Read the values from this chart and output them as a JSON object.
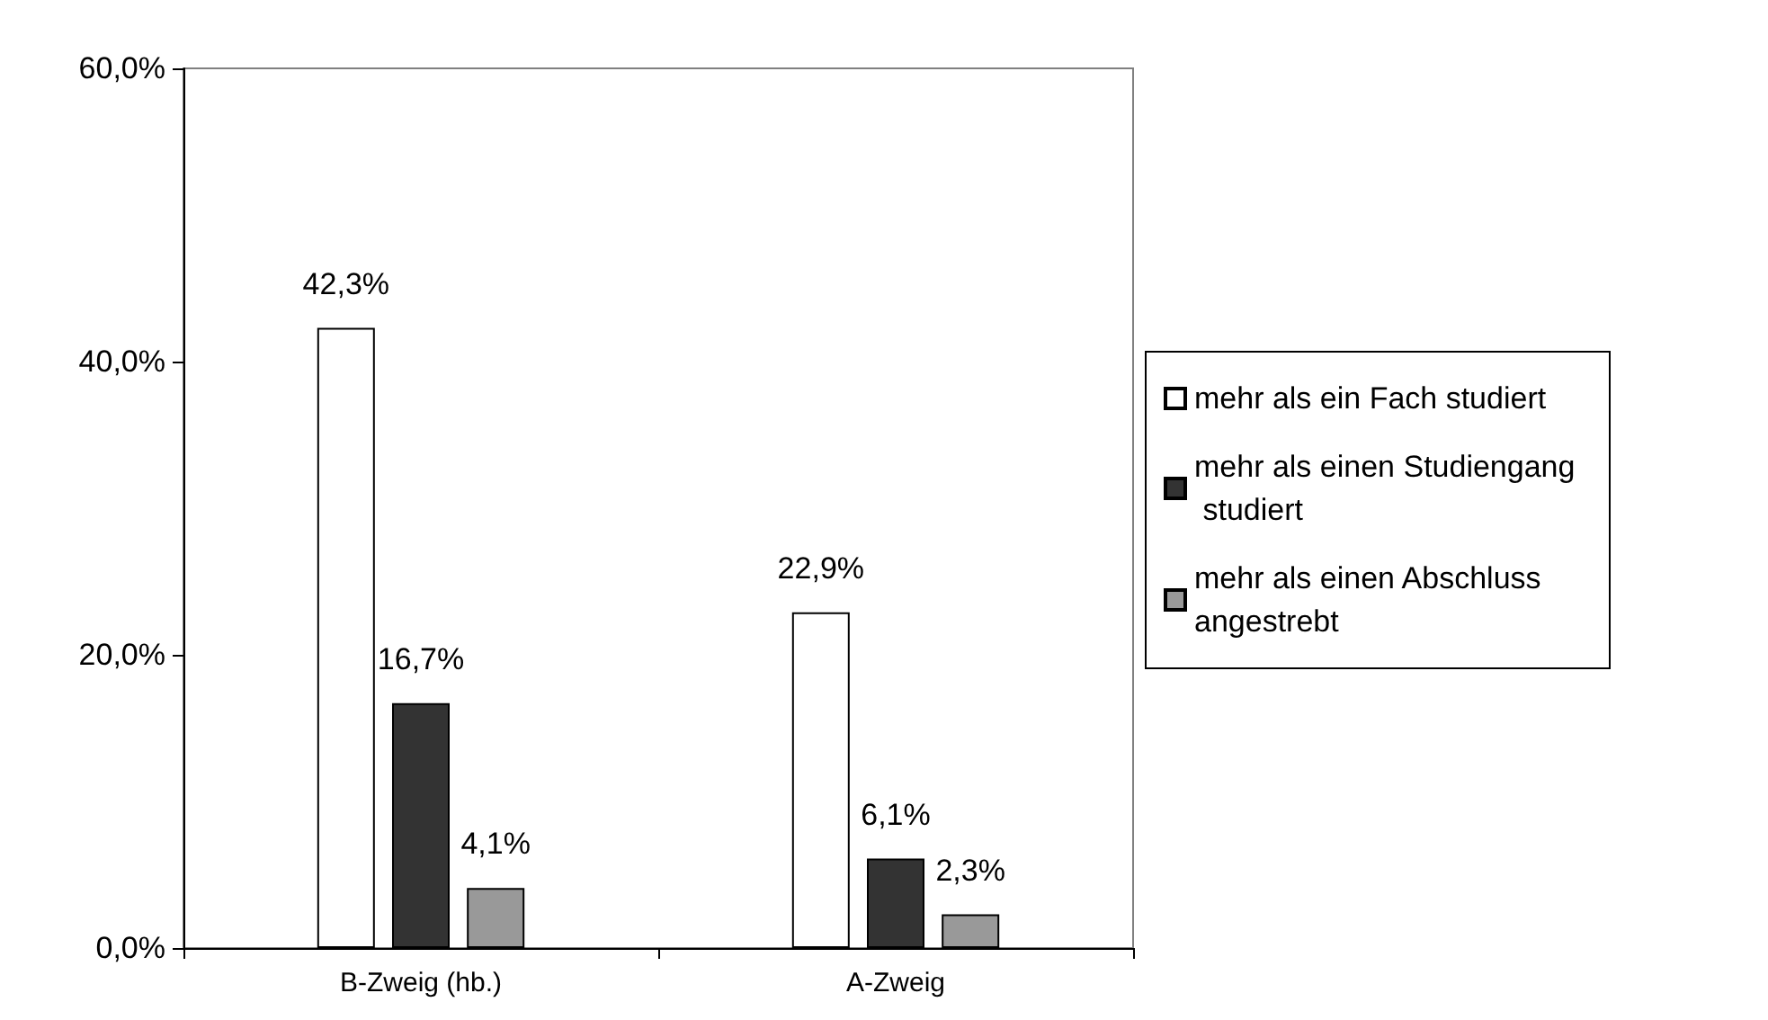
{
  "chart_data": {
    "type": "bar",
    "categories": [
      "B-Zweig (hb.)",
      "A-Zweig"
    ],
    "series": [
      {
        "name": "mehr als ein Fach studiert",
        "color": "#ffffff",
        "values": [
          42.3,
          22.9
        ],
        "value_labels": [
          "42,3%",
          "22,9%"
        ]
      },
      {
        "name": "mehr als einen Studiengang studiert",
        "color": "#333333",
        "values": [
          16.7,
          6.1
        ],
        "value_labels": [
          "16,7%",
          "6,1%"
        ]
      },
      {
        "name": "mehr als einen Abschluss angestrebt",
        "color": "#999999",
        "values": [
          4.1,
          2.3
        ],
        "value_labels": [
          "4,1%",
          "2,3%"
        ]
      }
    ],
    "ylim": [
      0,
      60
    ],
    "yticks": [
      {
        "value": 0,
        "label": "0,0%"
      },
      {
        "value": 20,
        "label": "20,0%"
      },
      {
        "value": 40,
        "label": "40,0%"
      },
      {
        "value": 60,
        "label": "60,0%"
      }
    ],
    "grid": false,
    "legend": "right"
  }
}
